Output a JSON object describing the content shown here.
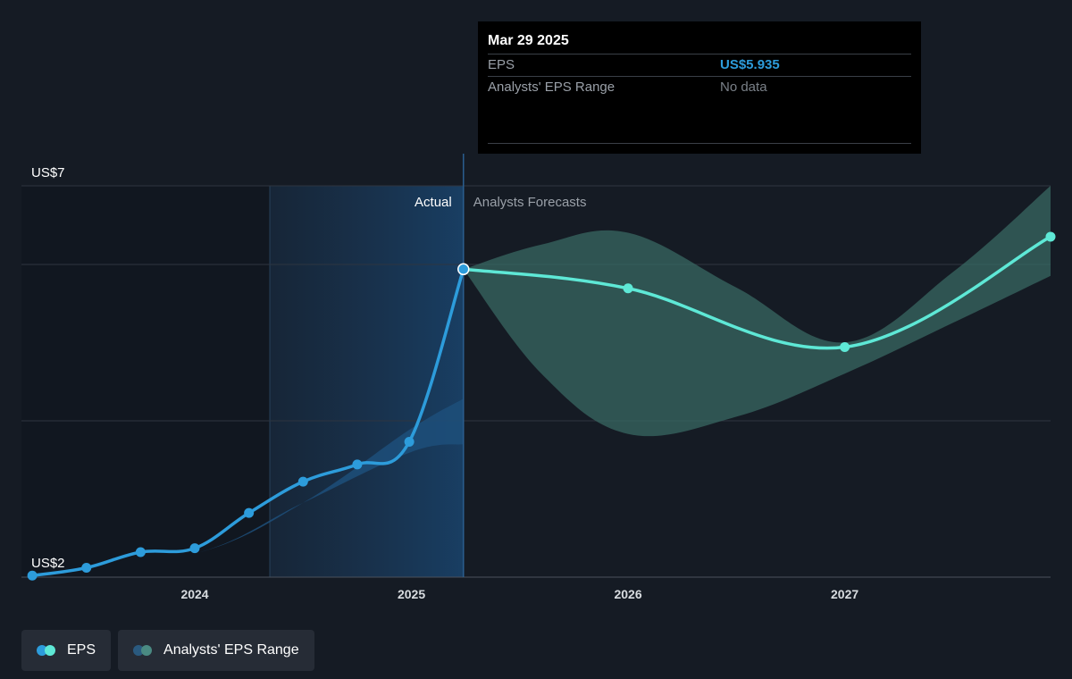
{
  "tooltip": {
    "date": "Mar 29 2025",
    "eps_label": "EPS",
    "eps_value": "US$5.935",
    "range_label": "Analysts' EPS Range",
    "range_value": "No data"
  },
  "colors": {
    "background": "#151b24",
    "actual_line": "#2d9cdb",
    "forecast_line": "#5ee8d6",
    "forecast_band": "#3a6b64",
    "actual_band": "#1d4f7a",
    "tooltip_eps_value": "#2d9cdb",
    "tooltip_range_value": "#7a8088"
  },
  "legend": [
    {
      "label": "EPS",
      "dot_colors": [
        "#2d9cdb",
        "#5ee8d6"
      ]
    },
    {
      "label": "Analysts' EPS Range",
      "dot_colors": [
        "#2a5a7f",
        "#4a8a82"
      ]
    }
  ],
  "chart_data": {
    "type": "line",
    "title": "",
    "xlabel": "",
    "ylabel": "",
    "y_tick_labels": [
      "US$7",
      "US$2"
    ],
    "y_ticks": [
      7,
      2
    ],
    "x_tick_labels": [
      "2024",
      "2025",
      "2026",
      "2027"
    ],
    "x_ticks": [
      2024,
      2025,
      2026,
      2027
    ],
    "ylim": [
      2,
      7
    ],
    "xlim": [
      2023.2,
      2027.95
    ],
    "region_labels": {
      "actual": "Actual",
      "forecast": "Analysts Forecasts"
    },
    "divider_x": 2025.24,
    "grid": true,
    "legend_position": "bottom-left",
    "series": [
      {
        "name": "EPS",
        "kind": "actual",
        "x": [
          2023.25,
          2023.5,
          2023.75,
          2024.0,
          2024.25,
          2024.5,
          2024.75,
          2024.99,
          2025.24
        ],
        "y": [
          2.02,
          2.12,
          2.32,
          2.37,
          2.82,
          3.22,
          3.44,
          3.73,
          5.935
        ]
      },
      {
        "name": "EPS",
        "kind": "forecast",
        "x": [
          2025.24,
          2026.0,
          2027.0,
          2027.95
        ],
        "y": [
          5.935,
          5.69,
          4.94,
          6.35
        ]
      },
      {
        "name": "Analysts' EPS Range",
        "kind": "actual_range",
        "x": [
          2023.25,
          2024.0,
          2024.5,
          2025.0,
          2025.24
        ],
        "low": [
          2.02,
          2.3,
          2.95,
          3.6,
          3.7
        ],
        "high": [
          2.02,
          2.3,
          2.95,
          3.9,
          4.28
        ]
      },
      {
        "name": "Analysts' EPS Range",
        "kind": "forecast_range",
        "x": [
          2025.24,
          2025.6,
          2026.0,
          2026.5,
          2027.0,
          2027.5,
          2027.95
        ],
        "low": [
          5.935,
          4.6,
          3.83,
          4.05,
          4.6,
          5.25,
          5.85
        ],
        "high": [
          5.935,
          6.25,
          6.4,
          5.7,
          5.0,
          5.9,
          7.0
        ]
      }
    ]
  }
}
